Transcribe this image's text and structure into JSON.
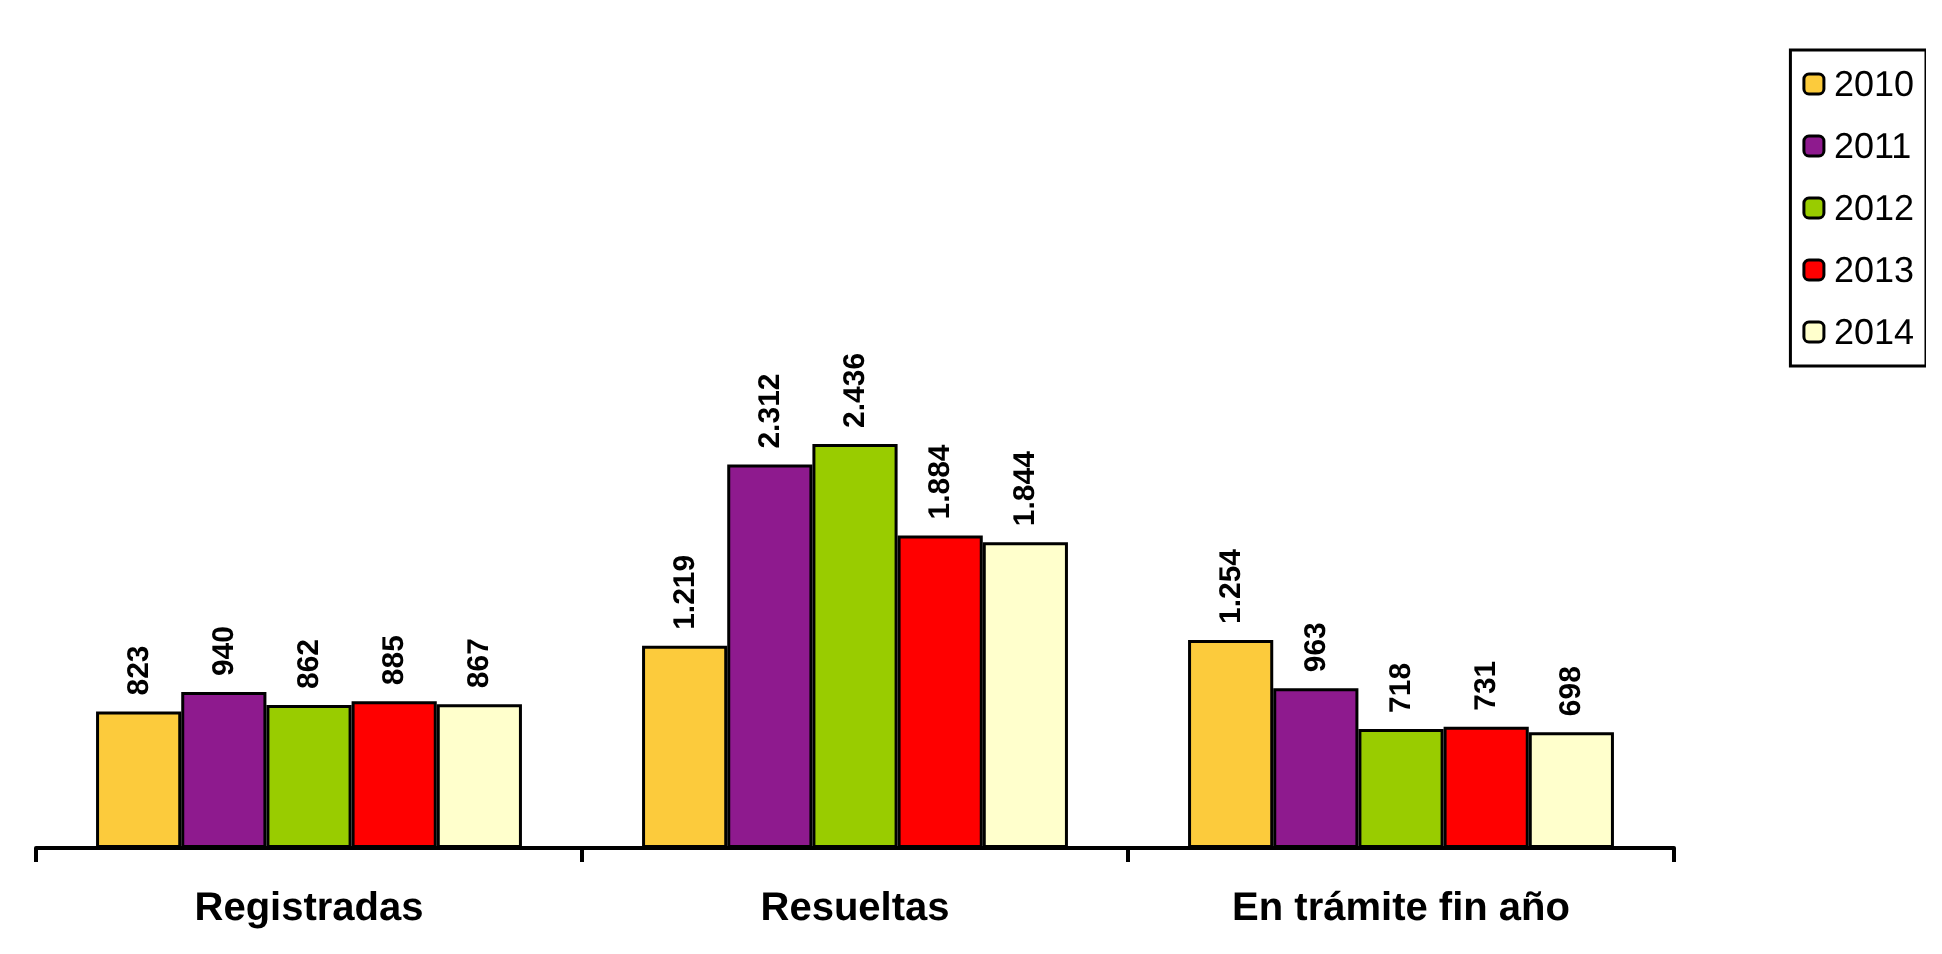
{
  "chart_data": {
    "type": "bar",
    "categories": [
      "Registradas",
      "Resueltas",
      "En trámite fin año"
    ],
    "series": [
      {
        "name": "2010",
        "color": "#fccb3c",
        "values": [
          823,
          1219,
          1254
        ],
        "value_labels": [
          "823",
          "1.219",
          "1.254"
        ]
      },
      {
        "name": "2011",
        "color": "#8e1a8e",
        "values": [
          940,
          2312,
          963
        ],
        "value_labels": [
          "940",
          "2.312",
          "963"
        ]
      },
      {
        "name": "2012",
        "color": "#99cc00",
        "values": [
          862,
          2436,
          718
        ],
        "value_labels": [
          "862",
          "2.436",
          "718"
        ]
      },
      {
        "name": "2013",
        "color": "#ff0000",
        "values": [
          885,
          1884,
          731
        ],
        "value_labels": [
          "885",
          "1.884",
          "731"
        ]
      },
      {
        "name": "2014",
        "color": "#ffffcc",
        "values": [
          867,
          1844,
          698
        ],
        "value_labels": [
          "867",
          "1.844",
          "698"
        ]
      }
    ],
    "legend": "top right",
    "grid": false
  }
}
